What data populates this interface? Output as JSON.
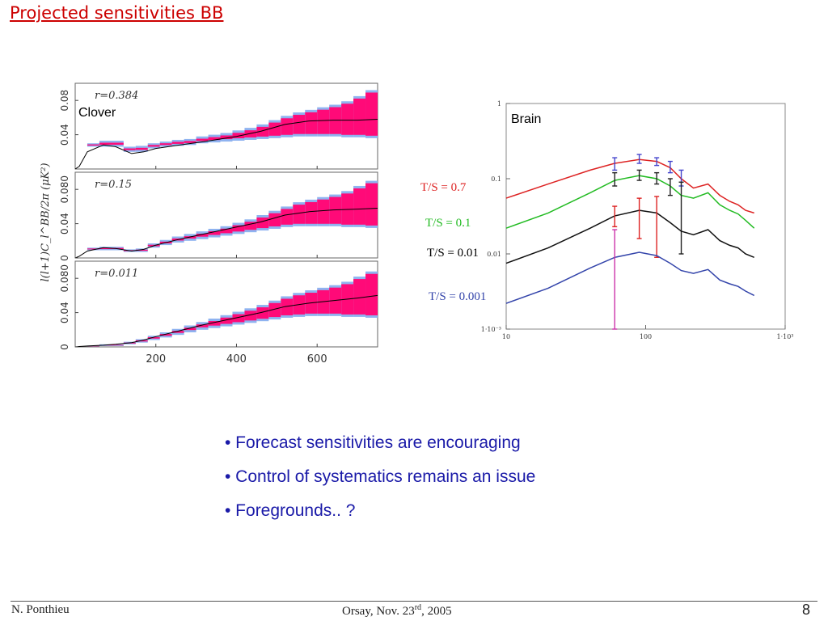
{
  "slide": {
    "title": "Projected sensitivities BB",
    "bullets": [
      "• Forecast sensitivities are encouraging",
      "• Control of systematics remains an issue",
      "• Foregrounds.. ?"
    ],
    "footer": {
      "author": "N. Ponthieu",
      "venue_prefix": "Orsay, Nov. 23",
      "venue_sup": "rd",
      "venue_suffix": ", 2005",
      "page": "8"
    }
  },
  "chart_data": [
    {
      "type": "bar",
      "label": "Clover",
      "ylabel": "l(l+1)C_l^BB/2π (μK²)",
      "x_ticks": [
        "200",
        "400",
        "600"
      ],
      "xlim": [
        0,
        750
      ],
      "colors": {
        "band": "#ff0a78",
        "edge": "#8fb3f0",
        "line": "#000000"
      },
      "panels": [
        {
          "label": "r=0.384",
          "ylim": [
            0,
            0.1
          ],
          "y_ticks": [
            "0.04",
            "0.08"
          ],
          "model": {
            "ell": [
              0,
              10,
              30,
              70,
              100,
              140,
              170,
              200,
              260,
              320,
              400,
              460,
              520,
              580,
              640,
              700,
              750
            ],
            "y": [
              0.0,
              0.003,
              0.02,
              0.028,
              0.026,
              0.018,
              0.02,
              0.024,
              0.028,
              0.032,
              0.038,
              0.044,
              0.052,
              0.056,
              0.057,
              0.057,
              0.058
            ]
          },
          "bins": [
            {
              "lo": 30,
              "hi": 60,
              "low": 0.026,
              "high": 0.03
            },
            {
              "lo": 60,
              "hi": 120,
              "low": 0.026,
              "high": 0.033
            },
            {
              "lo": 120,
              "hi": 150,
              "low": 0.02,
              "high": 0.026
            },
            {
              "lo": 150,
              "hi": 180,
              "low": 0.02,
              "high": 0.027
            },
            {
              "lo": 180,
              "hi": 210,
              "low": 0.024,
              "high": 0.03
            },
            {
              "lo": 210,
              "hi": 240,
              "low": 0.026,
              "high": 0.032
            },
            {
              "lo": 240,
              "hi": 270,
              "low": 0.027,
              "high": 0.034
            },
            {
              "lo": 270,
              "hi": 300,
              "low": 0.028,
              "high": 0.035
            },
            {
              "lo": 300,
              "hi": 330,
              "low": 0.03,
              "high": 0.038
            },
            {
              "lo": 330,
              "hi": 360,
              "low": 0.031,
              "high": 0.04
            },
            {
              "lo": 360,
              "hi": 390,
              "low": 0.032,
              "high": 0.042
            },
            {
              "lo": 390,
              "hi": 420,
              "low": 0.033,
              "high": 0.045
            },
            {
              "lo": 420,
              "hi": 450,
              "low": 0.034,
              "high": 0.048
            },
            {
              "lo": 450,
              "hi": 480,
              "low": 0.035,
              "high": 0.052
            },
            {
              "lo": 480,
              "hi": 510,
              "low": 0.036,
              "high": 0.057
            },
            {
              "lo": 510,
              "hi": 540,
              "low": 0.037,
              "high": 0.062
            },
            {
              "lo": 540,
              "hi": 570,
              "low": 0.038,
              "high": 0.066
            },
            {
              "lo": 570,
              "hi": 600,
              "low": 0.038,
              "high": 0.069
            },
            {
              "lo": 600,
              "hi": 630,
              "low": 0.038,
              "high": 0.072
            },
            {
              "lo": 630,
              "hi": 660,
              "low": 0.038,
              "high": 0.075
            },
            {
              "lo": 660,
              "hi": 690,
              "low": 0.037,
              "high": 0.079
            },
            {
              "lo": 690,
              "hi": 720,
              "low": 0.037,
              "high": 0.085
            },
            {
              "lo": 720,
              "hi": 750,
              "low": 0.036,
              "high": 0.092
            }
          ]
        },
        {
          "label": "r=0.15",
          "ylim": [
            0,
            0.1
          ],
          "y_ticks": [
            "0",
            "0.04",
            "0.080"
          ],
          "model": {
            "ell": [
              0,
              10,
              30,
              70,
              100,
              140,
              170,
              200,
              260,
              320,
              400,
              460,
              520,
              580,
              640,
              700,
              750
            ],
            "y": [
              0.0,
              0.002,
              0.008,
              0.012,
              0.011,
              0.008,
              0.01,
              0.015,
              0.022,
              0.028,
              0.036,
              0.042,
              0.05,
              0.054,
              0.056,
              0.057,
              0.058
            ]
          },
          "bins": [
            {
              "lo": 30,
              "hi": 60,
              "low": 0.009,
              "high": 0.012
            },
            {
              "lo": 60,
              "hi": 120,
              "low": 0.009,
              "high": 0.013
            },
            {
              "lo": 120,
              "hi": 150,
              "low": 0.007,
              "high": 0.01
            },
            {
              "lo": 150,
              "hi": 180,
              "low": 0.007,
              "high": 0.011
            },
            {
              "lo": 180,
              "hi": 210,
              "low": 0.012,
              "high": 0.017
            },
            {
              "lo": 210,
              "hi": 240,
              "low": 0.015,
              "high": 0.021
            },
            {
              "lo": 240,
              "hi": 270,
              "low": 0.018,
              "high": 0.025
            },
            {
              "lo": 270,
              "hi": 300,
              "low": 0.02,
              "high": 0.028
            },
            {
              "lo": 300,
              "hi": 330,
              "low": 0.022,
              "high": 0.031
            },
            {
              "lo": 330,
              "hi": 360,
              "low": 0.024,
              "high": 0.034
            },
            {
              "lo": 360,
              "hi": 390,
              "low": 0.026,
              "high": 0.037
            },
            {
              "lo": 390,
              "hi": 420,
              "low": 0.028,
              "high": 0.041
            },
            {
              "lo": 420,
              "hi": 450,
              "low": 0.03,
              "high": 0.045
            },
            {
              "lo": 450,
              "hi": 480,
              "low": 0.032,
              "high": 0.05
            },
            {
              "lo": 480,
              "hi": 510,
              "low": 0.034,
              "high": 0.055
            },
            {
              "lo": 510,
              "hi": 540,
              "low": 0.036,
              "high": 0.06
            },
            {
              "lo": 540,
              "hi": 570,
              "low": 0.037,
              "high": 0.065
            },
            {
              "lo": 570,
              "hi": 600,
              "low": 0.037,
              "high": 0.068
            },
            {
              "lo": 600,
              "hi": 630,
              "low": 0.037,
              "high": 0.071
            },
            {
              "lo": 630,
              "hi": 660,
              "low": 0.037,
              "high": 0.074
            },
            {
              "lo": 660,
              "hi": 690,
              "low": 0.036,
              "high": 0.078
            },
            {
              "lo": 690,
              "hi": 720,
              "low": 0.036,
              "high": 0.084
            },
            {
              "lo": 720,
              "hi": 750,
              "low": 0.035,
              "high": 0.09
            }
          ]
        },
        {
          "label": "r=0.011",
          "ylim": [
            0,
            0.1
          ],
          "y_ticks": [
            "0",
            "0.04",
            "0.080"
          ],
          "model": {
            "ell": [
              0,
              10,
              30,
              70,
              100,
              140,
              170,
              200,
              260,
              320,
              400,
              460,
              520,
              580,
              640,
              700,
              750
            ],
            "y": [
              0.0,
              0.0005,
              0.001,
              0.002,
              0.003,
              0.005,
              0.008,
              0.012,
              0.019,
              0.026,
              0.034,
              0.04,
              0.047,
              0.051,
              0.054,
              0.057,
              0.06
            ]
          },
          "bins": [
            {
              "lo": 30,
              "hi": 60,
              "low": 0.0005,
              "high": 0.0015
            },
            {
              "lo": 60,
              "hi": 120,
              "low": 0.001,
              "high": 0.003
            },
            {
              "lo": 120,
              "hi": 150,
              "low": 0.003,
              "high": 0.006
            },
            {
              "lo": 150,
              "hi": 180,
              "low": 0.005,
              "high": 0.009
            },
            {
              "lo": 180,
              "hi": 210,
              "low": 0.008,
              "high": 0.013
            },
            {
              "lo": 210,
              "hi": 240,
              "low": 0.011,
              "high": 0.017
            },
            {
              "lo": 240,
              "hi": 270,
              "low": 0.014,
              "high": 0.021
            },
            {
              "lo": 270,
              "hi": 300,
              "low": 0.017,
              "high": 0.025
            },
            {
              "lo": 300,
              "hi": 330,
              "low": 0.02,
              "high": 0.029
            },
            {
              "lo": 330,
              "hi": 360,
              "low": 0.022,
              "high": 0.033
            },
            {
              "lo": 360,
              "hi": 390,
              "low": 0.024,
              "high": 0.037
            },
            {
              "lo": 390,
              "hi": 420,
              "low": 0.026,
              "high": 0.041
            },
            {
              "lo": 420,
              "hi": 450,
              "low": 0.028,
              "high": 0.045
            },
            {
              "lo": 450,
              "hi": 480,
              "low": 0.03,
              "high": 0.049
            },
            {
              "lo": 480,
              "hi": 510,
              "low": 0.032,
              "high": 0.054
            },
            {
              "lo": 510,
              "hi": 540,
              "low": 0.034,
              "high": 0.059
            },
            {
              "lo": 540,
              "hi": 570,
              "low": 0.035,
              "high": 0.063
            },
            {
              "lo": 570,
              "hi": 600,
              "low": 0.036,
              "high": 0.066
            },
            {
              "lo": 600,
              "hi": 630,
              "low": 0.036,
              "high": 0.069
            },
            {
              "lo": 630,
              "hi": 660,
              "low": 0.036,
              "high": 0.072
            },
            {
              "lo": 660,
              "hi": 690,
              "low": 0.035,
              "high": 0.076
            },
            {
              "lo": 690,
              "hi": 720,
              "low": 0.035,
              "high": 0.082
            },
            {
              "lo": 720,
              "hi": 750,
              "low": 0.034,
              "high": 0.088
            }
          ]
        }
      ]
    },
    {
      "type": "line",
      "label": "Brain",
      "xscale": "log",
      "yscale": "log",
      "xlim": [
        10,
        1000
      ],
      "ylim": [
        0.001,
        1
      ],
      "x_ticks": [
        {
          "value": 10,
          "label": "10"
        },
        {
          "value": 100,
          "label": "100"
        },
        {
          "value": 1000,
          "label": "1·10³"
        }
      ],
      "y_ticks": [
        {
          "value": 1,
          "label": "1"
        },
        {
          "value": 0.1,
          "label": "0.1"
        },
        {
          "value": 0.01,
          "label": "0.01"
        },
        {
          "value": 0.001,
          "label": "1·10⁻³"
        }
      ],
      "series": [
        {
          "name": "T/S = 0.7",
          "color": "#dd2222",
          "x": [
            10,
            20,
            40,
            60,
            90,
            120,
            150,
            180,
            220,
            280,
            340,
            400,
            460,
            520,
            600
          ],
          "y": [
            0.055,
            0.085,
            0.13,
            0.16,
            0.18,
            0.17,
            0.14,
            0.1,
            0.075,
            0.085,
            0.06,
            0.05,
            0.045,
            0.038,
            0.035
          ],
          "errorbars": [
            {
              "x": 60,
              "low": 0.13,
              "high": 0.19,
              "color": "#4444cc"
            },
            {
              "x": 90,
              "low": 0.16,
              "high": 0.21,
              "color": "#4444cc"
            },
            {
              "x": 120,
              "low": 0.15,
              "high": 0.19,
              "color": "#4444cc"
            },
            {
              "x": 150,
              "low": 0.12,
              "high": 0.17,
              "color": "#4444cc"
            },
            {
              "x": 180,
              "low": 0.08,
              "high": 0.13,
              "color": "#4444cc"
            }
          ]
        },
        {
          "name": "T/S = 0.1",
          "color": "#22bb22",
          "x": [
            10,
            20,
            40,
            60,
            90,
            120,
            150,
            180,
            220,
            280,
            340,
            400,
            460,
            520,
            600
          ],
          "y": [
            0.022,
            0.035,
            0.065,
            0.095,
            0.11,
            0.1,
            0.08,
            0.06,
            0.055,
            0.065,
            0.045,
            0.038,
            0.034,
            0.028,
            0.022
          ],
          "errorbars": [
            {
              "x": 60,
              "low": 0.08,
              "high": 0.12,
              "color": "#222222"
            },
            {
              "x": 90,
              "low": 0.095,
              "high": 0.13,
              "color": "#222222"
            },
            {
              "x": 120,
              "low": 0.085,
              "high": 0.12,
              "color": "#222222"
            },
            {
              "x": 150,
              "low": 0.06,
              "high": 0.1,
              "color": "#222222"
            },
            {
              "x": 180,
              "low": 0.01,
              "high": 0.09,
              "color": "#222222"
            }
          ]
        },
        {
          "name": "T/S = 0.01",
          "color": "#111111",
          "x": [
            10,
            20,
            40,
            60,
            90,
            120,
            150,
            180,
            220,
            280,
            340,
            400,
            460,
            520,
            600
          ],
          "y": [
            0.0075,
            0.012,
            0.022,
            0.032,
            0.038,
            0.035,
            0.026,
            0.02,
            0.018,
            0.021,
            0.015,
            0.013,
            0.012,
            0.01,
            0.009
          ],
          "errorbars": [
            {
              "x": 60,
              "low": 0.023,
              "high": 0.043,
              "color": "#dd2222"
            },
            {
              "x": 90,
              "low": 0.016,
              "high": 0.055,
              "color": "#dd2222"
            },
            {
              "x": 120,
              "low": 0.009,
              "high": 0.058,
              "color": "#dd2222"
            }
          ]
        },
        {
          "name": "T/S = 0.001",
          "color": "#3344aa",
          "x": [
            10,
            20,
            40,
            60,
            90,
            120,
            150,
            180,
            220,
            280,
            340,
            400,
            460,
            520,
            600
          ],
          "y": [
            0.0022,
            0.0035,
            0.0065,
            0.009,
            0.0105,
            0.0095,
            0.0075,
            0.006,
            0.0055,
            0.0062,
            0.0045,
            0.004,
            0.0037,
            0.0032,
            0.0028
          ],
          "errorbars": [
            {
              "x": 60,
              "low": 0.001,
              "high": 0.021,
              "color": "#cc33aa"
            }
          ]
        }
      ]
    }
  ]
}
